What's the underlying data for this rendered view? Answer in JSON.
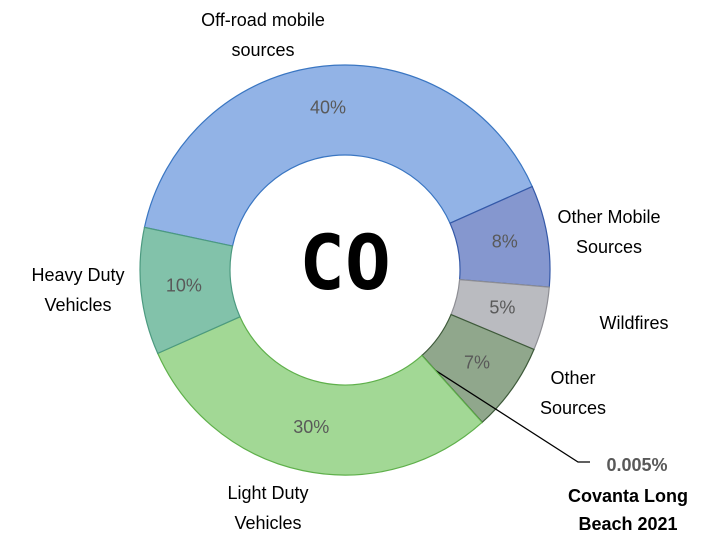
{
  "chart_data": {
    "type": "donut",
    "center_label": "CO",
    "categories": [
      "Off-road mobile sources",
      "Other Mobile Sources",
      "Wildfires",
      "Other Sources",
      "Covanta Long Beach 2021",
      "Light Duty Vehicles",
      "Heavy Duty Vehicles"
    ],
    "values": [
      40,
      8,
      5,
      7,
      0.005,
      30,
      10
    ],
    "value_labels": [
      "40%",
      "8%",
      "5%",
      "7%",
      "0.005%",
      "30%",
      "10%"
    ],
    "colors": [
      "#92b3e6",
      "#8597cf",
      "#babbc0",
      "#90a78c",
      "#1a1a1a",
      "#a2d895",
      "#82c2aa"
    ]
  }
}
